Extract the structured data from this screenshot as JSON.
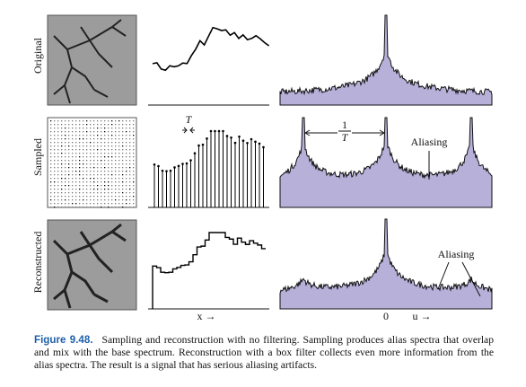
{
  "rows": [
    {
      "label": "Original"
    },
    {
      "label": "Sampled"
    },
    {
      "label": "Reconstructed"
    }
  ],
  "annotations": {
    "period": "T",
    "frequency_numerator": "1",
    "frequency_denominator": "T",
    "aliasing_sampled": "Aliasing",
    "aliasing_reconstructed": "Aliasing",
    "x_axis": "x →",
    "origin": "0",
    "u_axis": "u →"
  },
  "caption": {
    "label": "Figure 9.48.",
    "text": "Sampling and reconstruction with no filtering. Sampling produces alias spectra that overlap and mix with the base spectrum. Reconstruction with a box filter collects even more information from the alias spectra. The result is a signal that has serious aliasing artifacts."
  }
}
